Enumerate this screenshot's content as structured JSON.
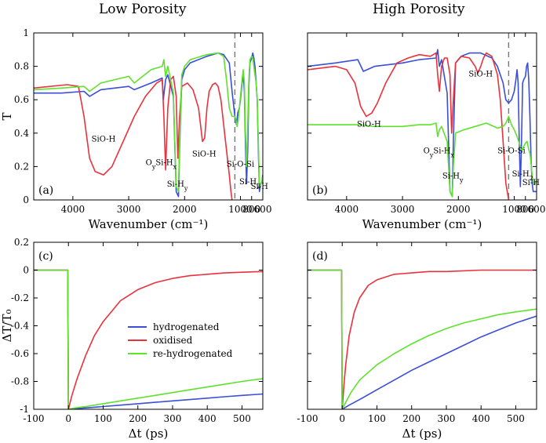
{
  "column_titles": [
    "Low Porosity",
    "High Porosity"
  ],
  "colors": {
    "blue": "#3a4fd6",
    "red": "#e8323c",
    "green": "#5fe22c",
    "dash": "#777777",
    "frame": "#000000"
  },
  "legend": {
    "entries": [
      {
        "label": "hydrogenated",
        "color": "#3a4fd6"
      },
      {
        "label": "oxidised",
        "color": "#e8323c"
      },
      {
        "label": "re-hydrogenated",
        "color": "#5fe22c"
      }
    ]
  },
  "chart_data": [
    {
      "panel": "(a)",
      "type": "line",
      "xlabel": "Wavenumber (cm⁻¹)",
      "ylabel": "T",
      "xlim": [
        4700,
        600
      ],
      "x_inverted": true,
      "ylim": [
        0,
        1
      ],
      "xticks": [
        4000,
        3000,
        2000,
        1000,
        800,
        600
      ],
      "yticks": [
        0,
        0.2,
        0.4,
        0.6,
        0.8,
        1
      ],
      "ytick_labels": [
        "0",
        "0.2",
        "0.4",
        "0.6",
        "0.8",
        "1"
      ],
      "dashed_line_x": 1100,
      "annotations": [
        {
          "text": "SiO-H",
          "x": 3450,
          "y": 0.35
        },
        {
          "text": "OySi-Hx",
          "x": 2420,
          "y": 0.21
        },
        {
          "text": "Si-Hy",
          "x": 2130,
          "y": 0.08
        },
        {
          "text": "SiO-H",
          "x": 1650,
          "y": 0.26
        },
        {
          "text": "Si-O-Si",
          "x": 1000,
          "y": 0.2
        },
        {
          "text": "Si-H2",
          "x": 830,
          "y": 0.095
        },
        {
          "text": "Si-H",
          "x": 660,
          "y": 0.065
        }
      ],
      "series": [
        {
          "name": "hydrogenated",
          "color": "#3a4fd6",
          "x": [
            4700,
            4200,
            3800,
            3700,
            3500,
            3000,
            2900,
            2600,
            2400,
            2380,
            2340,
            2300,
            2200,
            2150,
            2110,
            2090,
            2050,
            2000,
            1900,
            1600,
            1400,
            1300,
            1200,
            1150,
            1100,
            1070,
            1050,
            1020,
            1000,
            970,
            950,
            930,
            910,
            890,
            870,
            850,
            830,
            800,
            780,
            760,
            740,
            720,
            700,
            680,
            660,
            640,
            620,
            600
          ],
          "y": [
            0.64,
            0.64,
            0.65,
            0.62,
            0.66,
            0.68,
            0.66,
            0.7,
            0.73,
            0.6,
            0.72,
            0.75,
            0.62,
            0.05,
            0.02,
            0.3,
            0.72,
            0.78,
            0.82,
            0.86,
            0.88,
            0.87,
            0.82,
            0.65,
            0.5,
            0.45,
            0.52,
            0.55,
            0.6,
            0.7,
            0.75,
            0.65,
            0.32,
            0.1,
            0.3,
            0.68,
            0.82,
            0.85,
            0.88,
            0.85,
            0.8,
            0.7,
            0.6,
            0.3,
            0.05,
            0.1,
            0.1,
            0.15
          ]
        },
        {
          "name": "oxidised",
          "color": "#e8323c",
          "x": [
            4700,
            4100,
            3900,
            3800,
            3700,
            3600,
            3450,
            3300,
            3100,
            2900,
            2700,
            2500,
            2400,
            2370,
            2340,
            2300,
            2250,
            2200,
            2150,
            2120,
            2090,
            2050,
            1950,
            1850,
            1750,
            1680,
            1640,
            1600,
            1560,
            1500,
            1450,
            1400,
            1350,
            1300,
            1250,
            1200,
            1170,
            1150
          ],
          "y": [
            0.67,
            0.69,
            0.68,
            0.5,
            0.25,
            0.17,
            0.15,
            0.2,
            0.35,
            0.5,
            0.62,
            0.7,
            0.72,
            0.5,
            0.18,
            0.55,
            0.72,
            0.74,
            0.62,
            0.25,
            0.5,
            0.68,
            0.7,
            0.66,
            0.55,
            0.35,
            0.37,
            0.55,
            0.65,
            0.69,
            0.7,
            0.68,
            0.6,
            0.45,
            0.3,
            0.15,
            0.05,
            0.0
          ]
        },
        {
          "name": "re-hydrogenated",
          "color": "#5fe22c",
          "x": [
            4700,
            4200,
            3800,
            3700,
            3500,
            3000,
            2900,
            2600,
            2400,
            2370,
            2340,
            2300,
            2200,
            2150,
            2110,
            2090,
            2050,
            2000,
            1900,
            1600,
            1400,
            1300,
            1250,
            1200,
            1150,
            1100,
            1080,
            1060,
            1040,
            1020,
            1000,
            970,
            950,
            930,
            910,
            890,
            870,
            850,
            830,
            800,
            780,
            760,
            740,
            720,
            700,
            680,
            660,
            640,
            620,
            600
          ],
          "y": [
            0.66,
            0.67,
            0.68,
            0.65,
            0.7,
            0.74,
            0.7,
            0.78,
            0.8,
            0.84,
            0.74,
            0.8,
            0.64,
            0.08,
            0.05,
            0.35,
            0.75,
            0.8,
            0.84,
            0.87,
            0.88,
            0.86,
            0.72,
            0.55,
            0.5,
            0.5,
            0.48,
            0.44,
            0.48,
            0.55,
            0.62,
            0.72,
            0.78,
            0.7,
            0.4,
            0.2,
            0.45,
            0.72,
            0.84,
            0.86,
            0.85,
            0.8,
            0.75,
            0.7,
            0.6,
            0.35,
            0.08,
            0.1,
            0.1,
            0.14
          ]
        }
      ]
    },
    {
      "panel": "(b)",
      "type": "line",
      "xlabel": "Wavenumber (cm⁻¹)",
      "ylabel": "",
      "xlim": [
        4700,
        600
      ],
      "x_inverted": true,
      "ylim": [
        0,
        1
      ],
      "xticks": [
        4000,
        3000,
        2000,
        1000,
        800,
        600
      ],
      "yticks": [
        0,
        0.2,
        0.4,
        0.6,
        0.8,
        1
      ],
      "ytick_labels": [
        "",
        "",
        "",
        "",
        "",
        ""
      ],
      "dashed_line_x": 1100,
      "annotations": [
        {
          "text": "SiO-H",
          "x": 3600,
          "y": 0.44
        },
        {
          "text": "SiO-H",
          "x": 1600,
          "y": 0.74
        },
        {
          "text": "OySi-Hx",
          "x": 2350,
          "y": 0.28
        },
        {
          "text": "Si-Hy",
          "x": 2100,
          "y": 0.13
        },
        {
          "text": "Si-O-Si",
          "x": 1050,
          "y": 0.28
        },
        {
          "text": "Si-H2",
          "x": 850,
          "y": 0.14
        },
        {
          "text": "Si-H",
          "x": 700,
          "y": 0.09
        }
      ],
      "series": [
        {
          "name": "hydrogenated",
          "color": "#3a4fd6",
          "x": [
            4700,
            4200,
            3800,
            3700,
            3500,
            3000,
            2700,
            2400,
            2370,
            2340,
            2300,
            2200,
            2150,
            2110,
            2090,
            2050,
            1950,
            1800,
            1600,
            1400,
            1300,
            1200,
            1150,
            1100,
            1050,
            1000,
            970,
            950,
            930,
            910,
            890,
            870,
            850,
            830,
            800,
            780,
            760,
            740,
            720,
            700,
            680,
            660,
            640,
            620,
            600
          ],
          "y": [
            0.8,
            0.82,
            0.84,
            0.77,
            0.8,
            0.82,
            0.84,
            0.85,
            0.9,
            0.8,
            0.84,
            0.64,
            0.05,
            0.02,
            0.35,
            0.82,
            0.86,
            0.88,
            0.88,
            0.85,
            0.8,
            0.7,
            0.6,
            0.58,
            0.6,
            0.65,
            0.72,
            0.78,
            0.7,
            0.35,
            0.08,
            0.35,
            0.7,
            0.72,
            0.74,
            0.8,
            0.82,
            0.72,
            0.5,
            0.25,
            0.1,
            0.05,
            0.05,
            0.05,
            0.05
          ]
        },
        {
          "name": "oxidised",
          "color": "#e8323c",
          "x": [
            4700,
            4200,
            4000,
            3850,
            3750,
            3650,
            3550,
            3450,
            3300,
            3100,
            2900,
            2700,
            2500,
            2400,
            2370,
            2340,
            2300,
            2250,
            2200,
            2150,
            2120,
            2090,
            2050,
            1950,
            1800,
            1700,
            1650,
            1600,
            1550,
            1500,
            1400,
            1300,
            1250,
            1200,
            1150,
            1100
          ],
          "y": [
            0.78,
            0.8,
            0.78,
            0.7,
            0.56,
            0.5,
            0.52,
            0.58,
            0.7,
            0.82,
            0.85,
            0.87,
            0.86,
            0.88,
            0.75,
            0.65,
            0.8,
            0.85,
            0.85,
            0.75,
            0.4,
            0.6,
            0.82,
            0.86,
            0.85,
            0.8,
            0.76,
            0.8,
            0.85,
            0.88,
            0.86,
            0.75,
            0.6,
            0.35,
            0.1,
            0.0
          ]
        },
        {
          "name": "re-hydrogenated",
          "color": "#5fe22c",
          "x": [
            4700,
            4200,
            3800,
            3500,
            3000,
            2700,
            2500,
            2400,
            2370,
            2340,
            2300,
            2200,
            2150,
            2110,
            2090,
            2050,
            1900,
            1700,
            1500,
            1300,
            1200,
            1150,
            1100,
            1050,
            1000,
            950,
            900,
            870,
            850,
            830,
            800,
            770,
            740,
            720,
            700,
            680,
            660,
            640,
            620,
            600
          ],
          "y": [
            0.45,
            0.45,
            0.45,
            0.44,
            0.44,
            0.45,
            0.45,
            0.46,
            0.38,
            0.42,
            0.44,
            0.35,
            0.05,
            0.02,
            0.2,
            0.4,
            0.42,
            0.44,
            0.46,
            0.43,
            0.44,
            0.46,
            0.5,
            0.45,
            0.42,
            0.38,
            0.33,
            0.3,
            0.3,
            0.32,
            0.34,
            0.35,
            0.3,
            0.28,
            0.22,
            0.15,
            0.1,
            0.1,
            0.1,
            0.12
          ]
        }
      ]
    },
    {
      "panel": "(c)",
      "type": "line",
      "xlabel": "Δt  (ps)",
      "ylabel": "ΔT/T₀",
      "xlim": [
        -100,
        560
      ],
      "ylim": [
        -1,
        0.2
      ],
      "xticks": [
        -100,
        0,
        100,
        200,
        300,
        400,
        500
      ],
      "yticks": [
        -1,
        -0.8,
        -0.6,
        -0.4,
        -0.2,
        0,
        0.2
      ],
      "ytick_labels": [
        "-1",
        "-0.8",
        "-0.6",
        "-0.4",
        "-0.2",
        "0",
        "0.2"
      ],
      "legend_position": "center-right",
      "series": [
        {
          "name": "hydrogenated",
          "color": "#3a4fd6",
          "x": [
            -100,
            -10,
            -2,
            0,
            20,
            50,
            100,
            150,
            200,
            250,
            300,
            350,
            400,
            450,
            500,
            560
          ],
          "y": [
            0,
            0,
            0,
            -1.0,
            -0.995,
            -0.99,
            -0.98,
            -0.97,
            -0.96,
            -0.95,
            -0.94,
            -0.93,
            -0.92,
            -0.91,
            -0.9,
            -0.89
          ]
        },
        {
          "name": "oxidised",
          "color": "#e8323c",
          "x": [
            -100,
            -10,
            -2,
            0,
            10,
            25,
            50,
            75,
            100,
            150,
            200,
            250,
            300,
            350,
            400,
            450,
            500,
            560
          ],
          "y": [
            0,
            0,
            0,
            -1.0,
            -0.9,
            -0.78,
            -0.61,
            -0.47,
            -0.37,
            -0.22,
            -0.14,
            -0.09,
            -0.06,
            -0.04,
            -0.03,
            -0.02,
            -0.015,
            -0.01
          ]
        },
        {
          "name": "re-hydrogenated",
          "color": "#5fe22c",
          "x": [
            -100,
            -10,
            -2,
            0,
            20,
            50,
            100,
            150,
            200,
            250,
            300,
            350,
            400,
            450,
            500,
            560
          ],
          "y": [
            0,
            0,
            0,
            -1.0,
            -0.99,
            -0.98,
            -0.96,
            -0.94,
            -0.92,
            -0.9,
            -0.88,
            -0.86,
            -0.84,
            -0.82,
            -0.8,
            -0.78
          ]
        }
      ]
    },
    {
      "panel": "(d)",
      "type": "line",
      "xlabel": "Δt  (ps)",
      "ylabel": "",
      "xlim": [
        -100,
        560
      ],
      "ylim": [
        -1,
        0.2
      ],
      "xticks": [
        -100,
        0,
        100,
        200,
        300,
        400,
        500
      ],
      "yticks": [
        -1,
        -0.8,
        -0.6,
        -0.4,
        -0.2,
        0,
        0.2
      ],
      "ytick_labels": [
        "",
        "",
        "",
        "",
        "",
        "",
        ""
      ],
      "series": [
        {
          "name": "hydrogenated",
          "color": "#3a4fd6",
          "x": [
            -100,
            -10,
            -2,
            0,
            20,
            50,
            100,
            150,
            200,
            250,
            300,
            350,
            400,
            450,
            500,
            560
          ],
          "y": [
            0,
            0,
            0,
            -1.0,
            -0.97,
            -0.93,
            -0.86,
            -0.79,
            -0.72,
            -0.66,
            -0.6,
            -0.54,
            -0.48,
            -0.43,
            -0.38,
            -0.33
          ]
        },
        {
          "name": "oxidised",
          "color": "#e8323c",
          "x": [
            -100,
            -10,
            -2,
            0,
            5,
            10,
            20,
            35,
            50,
            75,
            100,
            150,
            200,
            250,
            300,
            400,
            500,
            560
          ],
          "y": [
            0,
            0,
            0,
            -1.0,
            -0.82,
            -0.68,
            -0.47,
            -0.3,
            -0.2,
            -0.11,
            -0.07,
            -0.03,
            -0.02,
            -0.01,
            -0.01,
            0,
            0,
            0
          ]
        },
        {
          "name": "re-hydrogenated",
          "color": "#5fe22c",
          "x": [
            -100,
            -10,
            -2,
            0,
            10,
            25,
            50,
            100,
            150,
            200,
            250,
            300,
            350,
            400,
            450,
            500,
            560
          ],
          "y": [
            0,
            0,
            0,
            -1.0,
            -0.95,
            -0.88,
            -0.79,
            -0.68,
            -0.6,
            -0.53,
            -0.47,
            -0.42,
            -0.38,
            -0.35,
            -0.32,
            -0.3,
            -0.28
          ]
        }
      ]
    }
  ]
}
